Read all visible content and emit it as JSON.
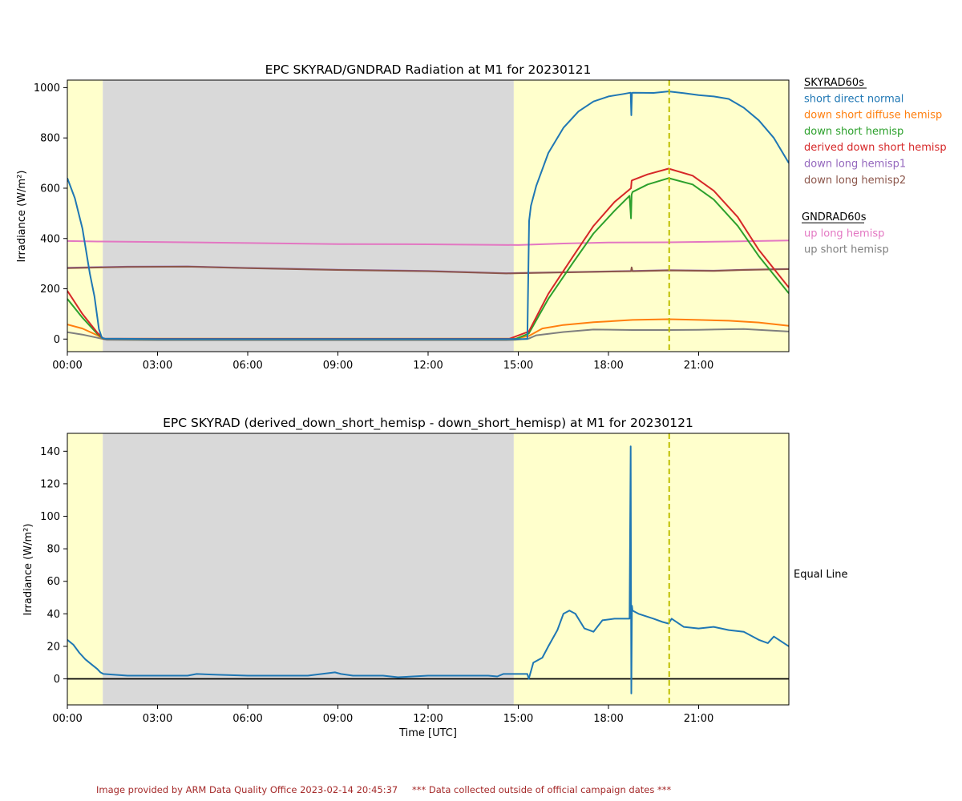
{
  "footer": {
    "provided": "Image provided by ARM Data Quality Office 2023-02-14 20:45:37",
    "note": "*** Data collected outside of official campaign dates ***"
  },
  "chart_data": [
    {
      "type": "line",
      "title": "EPC SKYRAD/GNDRAD Radiation at M1 for 20230121",
      "ylabel": "Irradiance (W/m²)",
      "xlabel": "",
      "xlim": [
        0,
        24
      ],
      "ylim": [
        -50,
        1030
      ],
      "xticks": [
        0,
        3,
        6,
        9,
        12,
        15,
        18,
        21
      ],
      "xtick_labels": [
        "00:00",
        "03:00",
        "06:00",
        "09:00",
        "12:00",
        "15:00",
        "18:00",
        "21:00"
      ],
      "yticks": [
        0,
        200,
        400,
        600,
        800,
        1000
      ],
      "ytick_labels": [
        "0",
        "200",
        "400",
        "600",
        "800",
        "1000"
      ],
      "grid": false,
      "shading": [
        {
          "from": 0,
          "to": 1.18,
          "color": "#ffffcc"
        },
        {
          "from": 1.18,
          "to": 14.85,
          "color": "#d9d9d9"
        },
        {
          "from": 14.85,
          "to": 24,
          "color": "#ffffcc"
        }
      ],
      "vline": {
        "x": 20.02,
        "color": "#bfbf00"
      },
      "legend_groups": [
        {
          "title": "SKYRAD60s",
          "entries": [
            {
              "name": "short direct normal",
              "color": "#1f77b4"
            },
            {
              "name": "down short diffuse hemisp",
              "color": "#ff7f0e"
            },
            {
              "name": "down short hemisp",
              "color": "#2ca02c"
            },
            {
              "name": "derived down short hemisp",
              "color": "#d62728"
            },
            {
              "name": "down long hemisp1",
              "color": "#9467bd"
            },
            {
              "name": "down long hemisp2",
              "color": "#8c564b"
            }
          ]
        },
        {
          "title": "GNDRAD60s",
          "entries": [
            {
              "name": "up long hemisp",
              "color": "#e377c2"
            },
            {
              "name": "up short hemisp",
              "color": "#7f7f7f"
            }
          ]
        }
      ],
      "series": [
        {
          "name": "up long hemisp",
          "color": "#e377c2",
          "x": [
            0,
            1,
            3,
            6,
            9,
            12,
            14,
            15,
            16.5,
            18,
            20,
            22,
            24
          ],
          "y": [
            390,
            388,
            386,
            382,
            378,
            377,
            375,
            374,
            380,
            384,
            385,
            388,
            392
          ]
        },
        {
          "name": "down long hemisp1",
          "color": "#9467bd",
          "x": [
            0,
            2,
            4,
            6,
            9,
            12,
            14.6,
            15,
            17,
            18.8,
            20,
            21.5,
            22.5,
            24
          ],
          "y": [
            284,
            288,
            289,
            283,
            276,
            271,
            262,
            263,
            267,
            271,
            274,
            272,
            276,
            279
          ]
        },
        {
          "name": "down long hemisp2",
          "color": "#8c564b",
          "x": [
            0,
            2,
            4,
            6,
            9,
            12,
            14.6,
            15,
            17,
            18.75,
            18.77,
            18.8,
            20,
            21.5,
            22.5,
            24
          ],
          "y": [
            282,
            287,
            288,
            282,
            275,
            270,
            261,
            262,
            266,
            270,
            285,
            270,
            273,
            271,
            275,
            278
          ]
        },
        {
          "name": "up short hemisp",
          "color": "#7f7f7f",
          "x": [
            0,
            0.5,
            1.0,
            1.3,
            3,
            6,
            9,
            12,
            14.6,
            14.9,
            15.35,
            15.6,
            16.5,
            17.5,
            18.8,
            20,
            21,
            22.5,
            24
          ],
          "y": [
            27,
            18,
            5,
            -3,
            -4,
            -4,
            -4,
            -4,
            -4,
            -3,
            2,
            15,
            28,
            38,
            36,
            36,
            37,
            40,
            30
          ]
        },
        {
          "name": "down short diffuse hemisp",
          "color": "#ff7f0e",
          "x": [
            0,
            0.5,
            1.0,
            1.2,
            3,
            6,
            9,
            12,
            14.9,
            15.35,
            15.8,
            16.5,
            17.5,
            18.8,
            20,
            21,
            22,
            23,
            24
          ],
          "y": [
            58,
            42,
            15,
            1,
            2,
            2,
            2,
            2,
            2,
            12,
            42,
            56,
            67,
            76,
            79,
            76,
            73,
            66,
            53
          ]
        },
        {
          "name": "down short hemisp",
          "color": "#2ca02c",
          "x": [
            0,
            0.5,
            1.0,
            1.2,
            3,
            6,
            9,
            12,
            14.9,
            15.35,
            16.0,
            16.8,
            17.5,
            18.2,
            18.7,
            18.75,
            18.77,
            18.8,
            19.3,
            20,
            20.8,
            21.5,
            22.3,
            23,
            24
          ],
          "y": [
            160,
            85,
            20,
            1,
            0,
            0,
            0,
            0,
            0,
            22,
            160,
            300,
            420,
            510,
            570,
            480,
            575,
            585,
            615,
            640,
            615,
            555,
            450,
            330,
            182
          ]
        },
        {
          "name": "derived down short hemisp",
          "color": "#d62728",
          "x": [
            0,
            0.5,
            1.0,
            1.2,
            3,
            6,
            9,
            12,
            14.7,
            15.35,
            16.0,
            16.8,
            17.5,
            18.2,
            18.75,
            18.77,
            18.8,
            19.3,
            20,
            20.8,
            21.5,
            22.3,
            23,
            24
          ],
          "y": [
            192,
            100,
            25,
            2,
            1,
            1,
            1,
            1,
            1,
            30,
            180,
            325,
            450,
            545,
            600,
            630,
            632,
            655,
            678,
            650,
            590,
            485,
            355,
            205
          ]
        },
        {
          "name": "short direct normal",
          "color": "#1f77b4",
          "x": [
            0,
            0.25,
            0.5,
            0.75,
            0.9,
            1.05,
            1.15,
            1.25,
            3,
            6,
            9,
            12,
            14.8,
            15.3,
            15.36,
            15.42,
            15.6,
            16.0,
            16.5,
            17.0,
            17.5,
            18.0,
            18.5,
            18.74,
            18.76,
            18.78,
            18.8,
            19.5,
            20.0,
            20.5,
            21.0,
            21.5,
            22.0,
            22.5,
            23.0,
            23.5,
            24.0
          ],
          "y": [
            640,
            560,
            440,
            260,
            170,
            40,
            5,
            2,
            0,
            0,
            0,
            0,
            0,
            0,
            470,
            530,
            610,
            740,
            840,
            905,
            945,
            965,
            975,
            980,
            890,
            978,
            980,
            979,
            985,
            978,
            970,
            965,
            955,
            920,
            870,
            800,
            700
          ]
        }
      ]
    },
    {
      "type": "line",
      "title": "EPC SKYRAD (derived_down_short_hemisp - down_short_hemisp) at M1 for 20230121",
      "ylabel": "Irradiance (W/m²)",
      "xlabel": "Time [UTC]",
      "xlim": [
        0,
        24
      ],
      "ylim": [
        -16,
        151
      ],
      "xticks": [
        0,
        3,
        6,
        9,
        12,
        15,
        18,
        21
      ],
      "xtick_labels": [
        "00:00",
        "03:00",
        "06:00",
        "09:00",
        "12:00",
        "15:00",
        "18:00",
        "21:00"
      ],
      "yticks": [
        0,
        20,
        40,
        60,
        80,
        100,
        120,
        140
      ],
      "ytick_labels": [
        "0",
        "20",
        "40",
        "60",
        "80",
        "100",
        "120",
        "140"
      ],
      "grid": false,
      "shading": [
        {
          "from": 0,
          "to": 1.18,
          "color": "#ffffcc"
        },
        {
          "from": 1.18,
          "to": 14.85,
          "color": "#d9d9d9"
        },
        {
          "from": 14.85,
          "to": 24,
          "color": "#ffffcc"
        }
      ],
      "vline": {
        "x": 20.02,
        "color": "#bfbf00"
      },
      "hline": {
        "y": 0,
        "color": "#000000"
      },
      "annotation": "Equal Line",
      "series": [
        {
          "name": "",
          "color": "#1f77b4",
          "x": [
            0,
            0.2,
            0.4,
            0.6,
            0.8,
            1.0,
            1.1,
            1.2,
            2,
            3,
            4,
            4.3,
            5,
            6,
            7,
            8,
            8.9,
            9.1,
            9.5,
            10,
            10.5,
            11,
            12,
            13,
            14,
            14.3,
            14.5,
            15,
            15.3,
            15.35,
            15.5,
            15.8,
            16.0,
            16.3,
            16.5,
            16.7,
            16.9,
            17.2,
            17.5,
            17.8,
            18.2,
            18.5,
            18.7,
            18.74,
            18.75,
            18.76,
            18.78,
            18.8,
            19.0,
            19.5,
            19.8,
            20.0,
            20.1,
            20.5,
            21.0,
            21.5,
            22.0,
            22.5,
            23.0,
            23.3,
            23.5,
            24.0
          ],
          "y": [
            24,
            21,
            16,
            12,
            9,
            6,
            4,
            3,
            2,
            2,
            2,
            3,
            2.5,
            2,
            2,
            2,
            4,
            3,
            2,
            2,
            2,
            1,
            2,
            2,
            2,
            1.5,
            3,
            3,
            3,
            0,
            10,
            13,
            20,
            30,
            40,
            42,
            40,
            31,
            29,
            36,
            37,
            37,
            37,
            143,
            60,
            -9,
            45,
            42,
            40,
            37,
            35,
            34,
            37,
            32,
            31,
            32,
            30,
            29,
            24,
            22,
            26,
            20
          ]
        }
      ]
    }
  ]
}
